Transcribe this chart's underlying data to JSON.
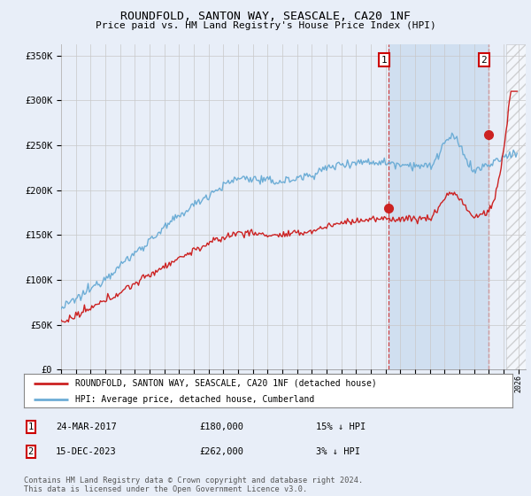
{
  "title": "ROUNDFOLD, SANTON WAY, SEASCALE, CA20 1NF",
  "subtitle": "Price paid vs. HM Land Registry's House Price Index (HPI)",
  "ylabel_ticks": [
    "£0",
    "£50K",
    "£100K",
    "£150K",
    "£200K",
    "£250K",
    "£300K",
    "£350K"
  ],
  "ytick_values": [
    0,
    50000,
    100000,
    150000,
    200000,
    250000,
    300000,
    350000
  ],
  "ylim": [
    0,
    362000
  ],
  "xlim_start": 1995.0,
  "xlim_end": 2026.5,
  "hpi_color": "#6dadd6",
  "price_color": "#cc2222",
  "dashed_line_color": "#cc2222",
  "point1_x": 2017.22,
  "point1_y": 180000,
  "point2_x": 2023.96,
  "point2_y": 262000,
  "point1_label": "1",
  "point2_label": "2",
  "legend_label_red": "ROUNDFOLD, SANTON WAY, SEASCALE, CA20 1NF (detached house)",
  "legend_label_blue": "HPI: Average price, detached house, Cumberland",
  "table_row1": [
    "1",
    "24-MAR-2017",
    "£180,000",
    "15% ↓ HPI"
  ],
  "table_row2": [
    "2",
    "15-DEC-2023",
    "£262,000",
    "3% ↓ HPI"
  ],
  "footnote": "Contains HM Land Registry data © Crown copyright and database right 2024.\nThis data is licensed under the Open Government Licence v3.0.",
  "background_color": "#e8eef8",
  "plot_bg_color": "#e8eef8",
  "highlight_bg_color": "#d0dff0",
  "grid_color": "#c8c8c8"
}
